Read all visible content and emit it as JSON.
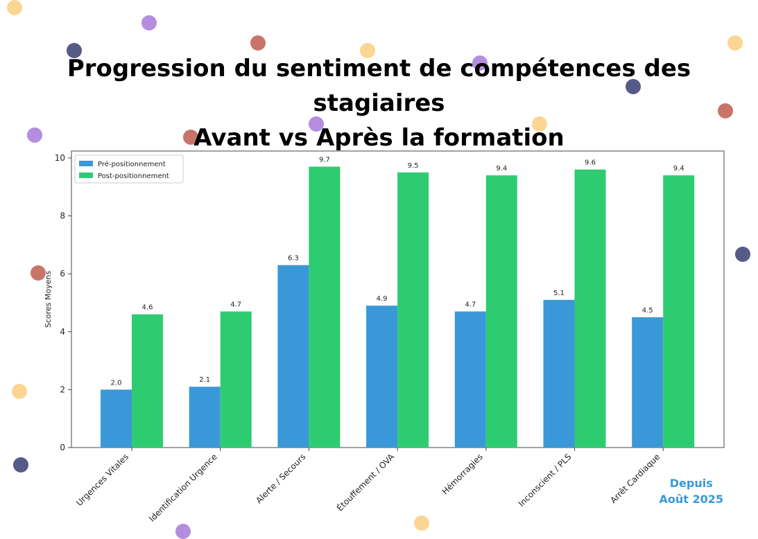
{
  "title_line1": "Progression du sentiment de compétences des stagiaires",
  "title_line2": "Avant vs Après la formation",
  "footnote": {
    "line1": "Depuis",
    "line2": "Août 2025"
  },
  "colors": {
    "pre": "#3a98d8",
    "post": "#2ecc71",
    "dot_orange": "#fdd593",
    "dot_purple": "#b48de0",
    "dot_navy": "#565a87",
    "dot_red": "#c97468"
  },
  "chart_data": {
    "type": "bar",
    "categories": [
      "Urgences Vitales",
      "Identification Urgence",
      "Alerte / Secours",
      "Étouffement / OVA",
      "Hémorragies",
      "Inconscient / PLS",
      "Arrêt Cardiaque"
    ],
    "series": [
      {
        "name": "Pré-positionnement",
        "values": [
          2.0,
          2.1,
          6.3,
          4.9,
          4.7,
          5.1,
          4.5
        ],
        "labels": [
          "2.0",
          "2.1",
          "6.3",
          "4.9",
          "4.7",
          "5.1",
          "4.5"
        ]
      },
      {
        "name": "Post-positionnement",
        "values": [
          4.6,
          4.7,
          9.7,
          9.5,
          9.4,
          9.6,
          9.4
        ],
        "labels": [
          "4.6",
          "4.7",
          "9.7",
          "9.5",
          "9.4",
          "9.6",
          "9.4"
        ]
      }
    ],
    "ylabel": "Scores Moyens",
    "xlabel": "",
    "ylim": [
      0,
      10
    ],
    "yticks": [
      "0",
      "2",
      "4",
      "6",
      "8",
      "10"
    ],
    "grid": false,
    "legend": "top-left"
  }
}
